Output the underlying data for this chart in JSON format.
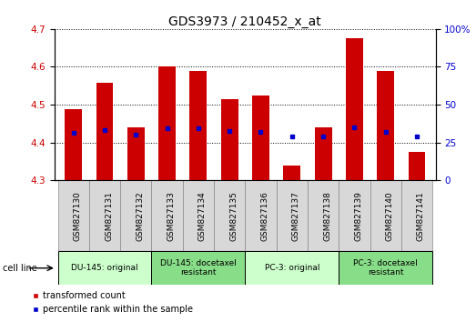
{
  "title": "GDS3973 / 210452_x_at",
  "samples": [
    "GSM827130",
    "GSM827131",
    "GSM827132",
    "GSM827133",
    "GSM827134",
    "GSM827135",
    "GSM827136",
    "GSM827137",
    "GSM827138",
    "GSM827139",
    "GSM827140",
    "GSM827141"
  ],
  "bar_values": [
    4.487,
    4.558,
    4.44,
    4.602,
    4.59,
    4.515,
    4.525,
    4.338,
    4.44,
    4.675,
    4.59,
    4.376
  ],
  "percentile_values": [
    4.426,
    4.432,
    4.42,
    4.437,
    4.438,
    4.431,
    4.427,
    4.416,
    4.416,
    4.44,
    4.428,
    4.416
  ],
  "bar_bottom": 4.3,
  "ylim": [
    4.3,
    4.7
  ],
  "yticks": [
    4.3,
    4.4,
    4.5,
    4.6,
    4.7
  ],
  "right_yticks": [
    0,
    25,
    50,
    75,
    100
  ],
  "bar_color": "#cc0000",
  "percentile_color": "#0000cc",
  "cell_line_groups": [
    {
      "label": "DU-145: original",
      "start": 0,
      "end": 3,
      "color": "#ccffcc"
    },
    {
      "label": "DU-145: docetaxel\nresistant",
      "start": 3,
      "end": 6,
      "color": "#88dd88"
    },
    {
      "label": "PC-3: original",
      "start": 6,
      "end": 9,
      "color": "#ccffcc"
    },
    {
      "label": "PC-3: docetaxel\nresistant",
      "start": 9,
      "end": 12,
      "color": "#88dd88"
    }
  ],
  "cell_line_label": "cell line",
  "legend_red": "transformed count",
  "legend_blue": "percentile rank within the sample",
  "red_color": "#cc0000",
  "blue_color": "#0000cc",
  "title_fontsize": 10,
  "tick_fontsize": 7.5,
  "bar_width": 0.55,
  "xtick_gray": "#d8d8d8"
}
